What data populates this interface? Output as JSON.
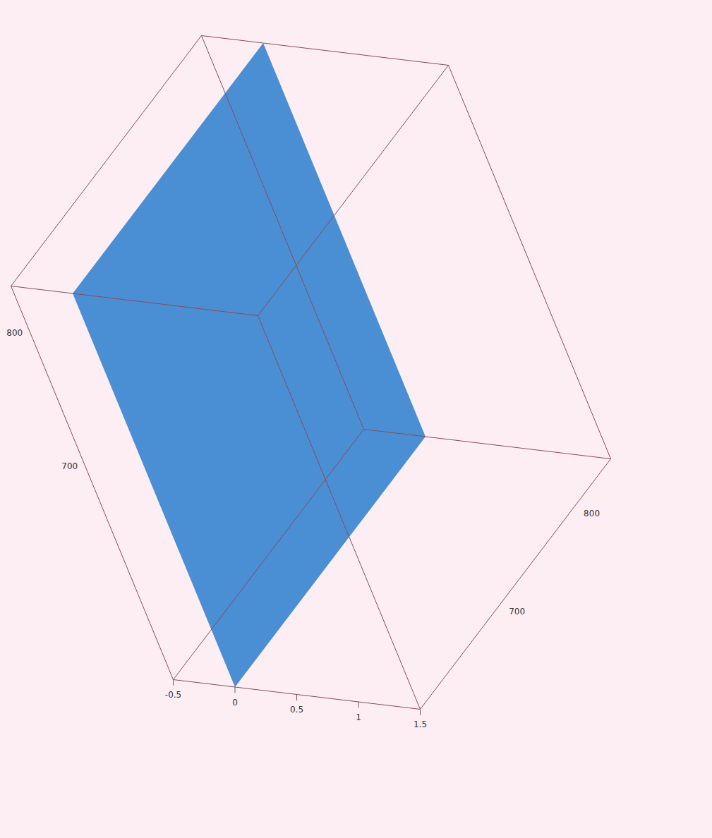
{
  "chart_data": {
    "type": "surface",
    "color": "#4a8fd4",
    "xlim": [
      540,
      835
    ],
    "xticks": [
      700,
      800
    ],
    "ylim": [
      595,
      850
    ],
    "yticks": [
      700,
      800
    ],
    "zlim": [
      -0.5,
      1.5
    ],
    "zticks": [
      -0.5,
      0,
      0.5,
      1,
      1.5
    ],
    "surface": {
      "x": [
        540,
        835
      ],
      "y": [
        595,
        850
      ],
      "z": [
        [
          0,
          0
        ],
        [
          0,
          0
        ]
      ]
    }
  }
}
